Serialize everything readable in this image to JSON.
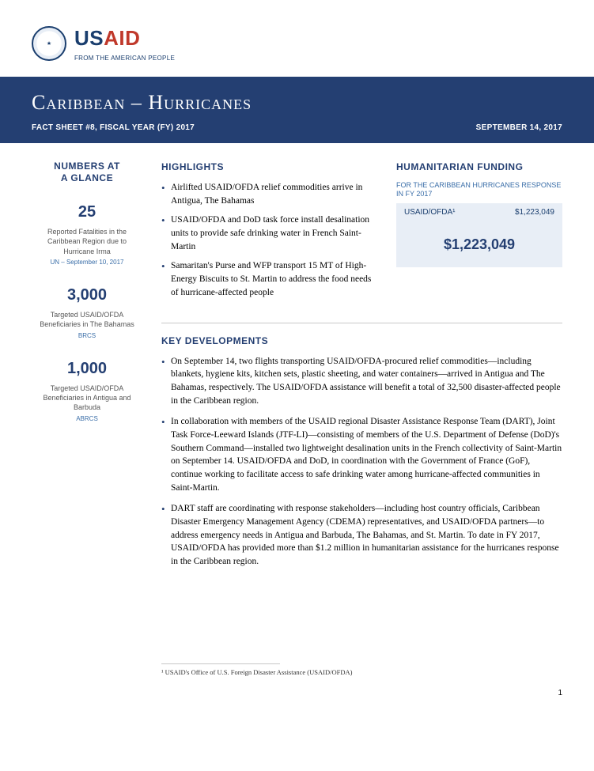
{
  "logo": {
    "main_a": "US",
    "main_b": "AID",
    "sub": "FROM THE AMERICAN PEOPLE",
    "seal_label": "★"
  },
  "banner": {
    "title": "Caribbean – Hurricanes",
    "left": "FACT SHEET #8, FISCAL YEAR (FY) 2017",
    "right": "SEPTEMBER 14, 2017"
  },
  "sidebar": {
    "heading_l1": "NUMBERS AT",
    "heading_l2": "A GLANCE",
    "stats": [
      {
        "num": "25",
        "desc": "Reported Fatalities in the Caribbean Region due to Hurricane Irma",
        "src": "UN – September 10, 2017"
      },
      {
        "num": "3,000",
        "desc": "Targeted USAID/OFDA Beneficiaries in The Bahamas",
        "src": "BRCS"
      },
      {
        "num": "1,000",
        "desc": "Targeted USAID/OFDA Beneficiaries in Antigua and Barbuda",
        "src": "ABRCS"
      }
    ]
  },
  "highlights": {
    "title": "HIGHLIGHTS",
    "items": [
      "Airlifted USAID/OFDA relief commodities arrive in Antigua, The Bahamas",
      "USAID/OFDA and DoD task force install desalination units to provide safe drinking water in French Saint-Martin",
      "Samaritan's Purse and WFP transport 15 MT of High-Energy Biscuits to St. Martin to address the food needs of hurricane-affected people"
    ]
  },
  "funding": {
    "title": "HUMANITARIAN FUNDING",
    "sub": "FOR THE CARIBBEAN HURRICANES RESPONSE IN FY 2017",
    "row_label": "USAID/OFDA¹",
    "row_value": "$1,223,049",
    "total": "$1,223,049"
  },
  "keydev": {
    "title": "KEY DEVELOPMENTS",
    "items": [
      "On September 14, two flights transporting USAID/OFDA-procured relief commodities—including blankets, hygiene kits, kitchen sets, plastic sheeting, and water containers—arrived in Antigua and The Bahamas, respectively.  The USAID/OFDA assistance will benefit a total of 32,500 disaster-affected people in the Caribbean region.",
      "In collaboration with members of the USAID regional Disaster Assistance Response Team (DART), Joint Task Force-Leeward Islands (JTF-LI)—consisting of members of the U.S. Department of Defense (DoD)'s Southern Command—installed two lightweight desalination units in the French collectivity of Saint-Martin on September 14.  USAID/OFDA and DoD, in coordination with the Government of France (GoF), continue working to facilitate access to safe drinking water among hurricane-affected communities in Saint-Martin.",
      "DART staff are coordinating with response stakeholders—including host country officials, Caribbean Disaster Emergency Management Agency (CDEMA) representatives, and USAID/OFDA partners—to address emergency needs in Antigua and Barbuda, The Bahamas, and St. Martin.  To date in FY 2017, USAID/OFDA has provided more than $1.2 million in humanitarian assistance for the hurricanes response in the Caribbean region."
    ]
  },
  "footnote": "¹ USAID's Office of U.S. Foreign Disaster Assistance (USAID/OFDA)",
  "page_number": "1",
  "colors": {
    "banner_bg": "#243f72",
    "accent": "#243f72",
    "light_blue_bg": "#e8eef6",
    "link_blue": "#3a6ea8",
    "logo_red": "#c0392b"
  }
}
